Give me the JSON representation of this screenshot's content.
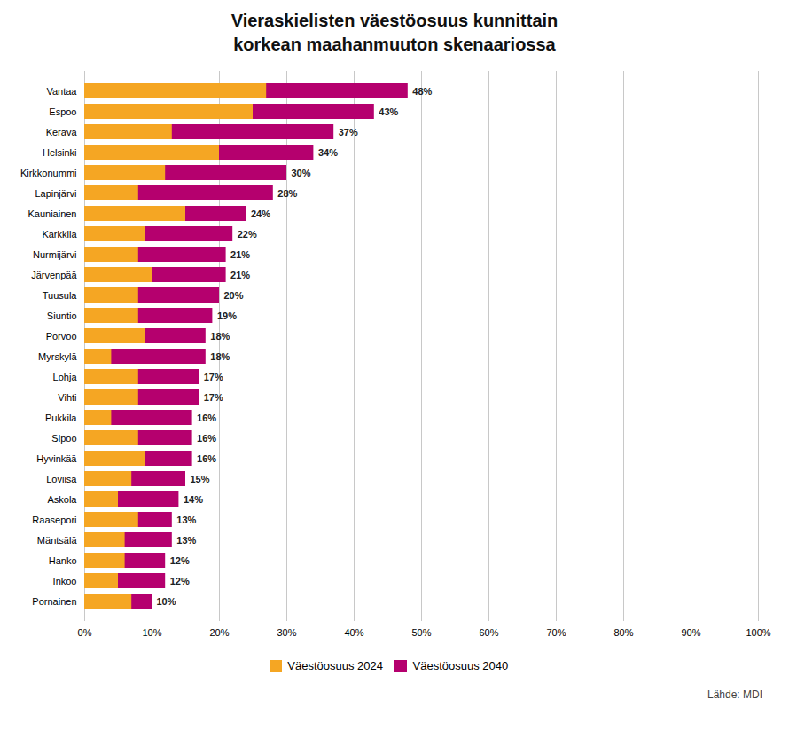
{
  "chart_data": {
    "type": "bar",
    "orientation": "horizontal",
    "stacked": false,
    "title": "Vieraskielisten väestöosuus kunnittain\nkorkean maahanmuuton skenaariossa",
    "source": "Lähde: MDI",
    "categories": [
      "Vantaa",
      "Espoo",
      "Kerava",
      "Helsinki",
      "Kirkkonummi",
      "Lapinjärvi",
      "Kauniainen",
      "Karkkila",
      "Nurmijärvi",
      "Järvenpää",
      "Tuusula",
      "Siuntio",
      "Porvoo",
      "Myrskylä",
      "Lohja",
      "Vihti",
      "Pukkila",
      "Sipoo",
      "Hyvinkää",
      "Loviisa",
      "Askola",
      "Raasepori",
      "Mäntsälä",
      "Hanko",
      "Inkoo",
      "Pornainen"
    ],
    "series": [
      {
        "name": "Väestöosuus 2024",
        "color": "#F5A623",
        "values": [
          27,
          25,
          13,
          20,
          12,
          8,
          15,
          9,
          8,
          10,
          8,
          8,
          9,
          4,
          8,
          8,
          4,
          8,
          9,
          7,
          5,
          8,
          6,
          6,
          5,
          7
        ]
      },
      {
        "name": "Väestöosuus 2040",
        "color": "#B5006E",
        "values": [
          48,
          43,
          37,
          34,
          30,
          28,
          24,
          22,
          21,
          21,
          20,
          19,
          18,
          18,
          17,
          17,
          16,
          16,
          16,
          15,
          14,
          13,
          13,
          12,
          12,
          10
        ],
        "value_labels": [
          "48%",
          "43%",
          "37%",
          "34%",
          "30%",
          "28%",
          "24%",
          "22%",
          "21%",
          "21%",
          "20%",
          "19%",
          "18%",
          "18%",
          "17%",
          "17%",
          "16%",
          "16%",
          "16%",
          "15%",
          "14%",
          "13%",
          "13%",
          "12%",
          "12%",
          "10%"
        ]
      }
    ],
    "xlim": [
      0,
      100
    ],
    "xticks": [
      {
        "value": 0,
        "label": "0%"
      },
      {
        "value": 10,
        "label": "10%"
      },
      {
        "value": 20,
        "label": "20%"
      },
      {
        "value": 30,
        "label": "30%"
      },
      {
        "value": 40,
        "label": "40%"
      },
      {
        "value": 50,
        "label": "50%"
      },
      {
        "value": 60,
        "label": "60%"
      },
      {
        "value": 70,
        "label": "70%"
      },
      {
        "value": 80,
        "label": "80%"
      },
      {
        "value": 90,
        "label": "90%"
      },
      {
        "value": 100,
        "label": "100%"
      }
    ],
    "grid": true,
    "data_labels": true,
    "legend": "bottom"
  }
}
